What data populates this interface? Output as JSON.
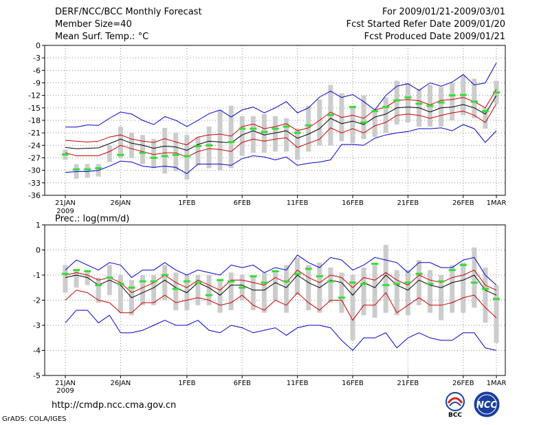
{
  "header": {
    "title": "DERF/NCC/BCC Monthly Forecast",
    "member_size": "Member Size=40",
    "variable": "Mean Surf. Temp.: °C",
    "period": "For 2009/01/21-2009/03/01",
    "started": "Fcst Started Refer Date 2009/01/20",
    "produced": "Fcst Produced Date 2009/01/21"
  },
  "footer": {
    "url": "http://cmdp.ncc.cma.gov.cn",
    "grads": "GrADS: COLA/IGES",
    "logo_bcc": "BCC",
    "logo_ncc": "NCC"
  },
  "colors": {
    "ensemble_mean": "#000000",
    "inner_spread": "#cc0000",
    "outer_spread": "#0000cc",
    "member_box": "#cccccc",
    "observation": "#33dd33",
    "grid": "#888888"
  },
  "chart_data": [
    {
      "type": "line",
      "panel": "temperature",
      "title": "Mean Surf. Temp.: °C",
      "xlabel": "",
      "ylabel": "",
      "ylim": [
        -36,
        0
      ],
      "yticks": [
        0,
        -3,
        -6,
        -9,
        -12,
        -15,
        -18,
        -21,
        -24,
        -27,
        -30,
        -33,
        -36
      ],
      "xticks": [
        {
          "day": 0,
          "label": "21JAN",
          "sublabel": "2009"
        },
        {
          "day": 5,
          "label": "26JAN"
        },
        {
          "day": 11,
          "label": "1FEB"
        },
        {
          "day": 16,
          "label": "6FEB"
        },
        {
          "day": 21,
          "label": "11FEB"
        },
        {
          "day": 26,
          "label": "16FEB"
        },
        {
          "day": 31,
          "label": "21FEB"
        },
        {
          "day": 36,
          "label": "26FEB"
        },
        {
          "day": 39,
          "label": "1MAR"
        }
      ],
      "days": [
        0,
        1,
        2,
        3,
        4,
        5,
        6,
        7,
        8,
        9,
        10,
        11,
        12,
        13,
        14,
        15,
        16,
        17,
        18,
        19,
        20,
        21,
        22,
        23,
        24,
        25,
        26,
        27,
        28,
        29,
        30,
        31,
        32,
        33,
        34,
        35,
        36,
        37,
        38,
        39
      ],
      "series": [
        {
          "name": "upper_outer",
          "values": [
            -19.6,
            -19.6,
            -19.1,
            -19.2,
            -17.5,
            -16.0,
            -16.5,
            -18.0,
            -19.0,
            -17.1,
            -18.0,
            -19.5,
            -18.0,
            -16.4,
            -15.5,
            -17.2,
            -15.5,
            -14.8,
            -16.2,
            -15.0,
            -13.5,
            -16.2,
            -15.0,
            -12.4,
            -11.0,
            -12.5,
            -11.8,
            -13.5,
            -15.5,
            -12.0,
            -9.8,
            -9.2,
            -10.8,
            -9.0,
            -9.8,
            -8.8,
            -7.0,
            -9.5,
            -9.0,
            -4.2
          ]
        },
        {
          "name": "upper_inner",
          "values": [
            -22.8,
            -23.0,
            -23.2,
            -23.0,
            -22.0,
            -21.5,
            -22.5,
            -23.0,
            -23.3,
            -22.4,
            -23.2,
            -23.9,
            -22.0,
            -21.5,
            -21.3,
            -21.8,
            -19.5,
            -18.9,
            -20.0,
            -19.5,
            -18.8,
            -20.5,
            -19.8,
            -18.0,
            -16.0,
            -17.3,
            -16.8,
            -17.5,
            -15.5,
            -14.8,
            -13.2,
            -13.0,
            -13.3,
            -14.3,
            -13.2,
            -13.0,
            -12.5,
            -13.5,
            -15.0,
            -10.5
          ]
        },
        {
          "name": "mean",
          "values": [
            -24.5,
            -24.8,
            -24.7,
            -24.6,
            -23.6,
            -22.5,
            -23.5,
            -24.0,
            -24.7,
            -24.2,
            -24.4,
            -25.2,
            -23.8,
            -23.0,
            -23.2,
            -23.4,
            -21.5,
            -20.5,
            -21.5,
            -21.0,
            -20.5,
            -22.3,
            -21.3,
            -20.0,
            -17.5,
            -18.8,
            -18.2,
            -19.0,
            -17.2,
            -16.5,
            -15.0,
            -14.8,
            -15.0,
            -16.0,
            -15.0,
            -14.8,
            -14.2,
            -15.0,
            -16.5,
            -12.0
          ]
        },
        {
          "name": "lower_inner",
          "values": [
            -25.8,
            -26.5,
            -26.5,
            -26.5,
            -25.5,
            -24.0,
            -24.8,
            -25.5,
            -26.2,
            -25.8,
            -25.8,
            -26.8,
            -25.5,
            -24.8,
            -25.0,
            -25.5,
            -23.3,
            -22.5,
            -23.0,
            -22.5,
            -22.2,
            -24.5,
            -23.5,
            -22.5,
            -19.8,
            -21.0,
            -20.0,
            -21.0,
            -19.3,
            -18.5,
            -16.8,
            -16.5,
            -16.8,
            -17.5,
            -16.8,
            -16.2,
            -15.8,
            -16.8,
            -18.5,
            -14.0
          ]
        },
        {
          "name": "lower_outer",
          "values": [
            -30.5,
            -30.3,
            -30.3,
            -30.0,
            -29.0,
            -27.8,
            -28.0,
            -29.0,
            -29.3,
            -29.0,
            -29.3,
            -30.8,
            -28.5,
            -28.5,
            -28.5,
            -28.8,
            -27.2,
            -26.5,
            -26.8,
            -27.5,
            -26.8,
            -28.8,
            -28.3,
            -28.0,
            -27.5,
            -23.8,
            -23.8,
            -24.0,
            -22.3,
            -21.5,
            -21.0,
            -20.7,
            -20.0,
            -20.0,
            -19.8,
            -20.5,
            -19.0,
            -20.0,
            -23.3,
            -20.5
          ]
        }
      ],
      "box_low": [
        -27.5,
        -32.0,
        -31.8,
        -31.5,
        -28.0,
        -27.0,
        -27.0,
        -28.5,
        -29.5,
        -30.8,
        -30.2,
        -32.2,
        -28.8,
        -29.5,
        -30.0,
        -29.5,
        -26.5,
        -25.8,
        -25.8,
        -25.5,
        -25.5,
        -27.5,
        -25.5,
        -24.0,
        -24.0,
        -23.0,
        -23.5,
        -22.5,
        -22.0,
        -21.0,
        -19.0,
        -18.5,
        -19.5,
        -19.5,
        -19.5,
        -18.0,
        -16.8,
        -17.5,
        -20.0,
        -14.0
      ],
      "box_high": [
        -25.0,
        -28.5,
        -28.5,
        -28.5,
        -24.0,
        -19.5,
        -21.0,
        -21.5,
        -22.5,
        -19.8,
        -21.0,
        -21.5,
        -22.0,
        -19.5,
        -15.5,
        -14.5,
        -17.0,
        -17.0,
        -16.5,
        -17.0,
        -17.5,
        -20.0,
        -14.5,
        -13.0,
        -9.5,
        -11.5,
        -14.5,
        -12.0,
        -15.5,
        -12.5,
        -8.5,
        -9.0,
        -10.5,
        -9.5,
        -10.0,
        -9.0,
        -7.2,
        -8.0,
        -15.0,
        -8.5
      ],
      "observed": [
        -26.2,
        -29.8,
        -29.8,
        -29.5,
        null,
        -26.3,
        null,
        -25.8,
        -27.0,
        -26.6,
        -26.3,
        -26.6,
        -24.2,
        -24.0,
        null,
        -23.2,
        -20.0,
        -20.0,
        -20.8,
        -20.0,
        -19.5,
        -21.0,
        -19.2,
        null,
        -16.7,
        null,
        -14.8,
        -18.5,
        -15.8,
        -14.8,
        -13.2,
        -12.5,
        -14.0,
        -14.5,
        -13.7,
        -12.0,
        -11.9,
        -13.5,
        -15.8,
        -11.3
      ]
    },
    {
      "type": "line",
      "panel": "precipitation",
      "title": "Prec.: log(mm/d)",
      "xlabel": "",
      "ylabel": "",
      "ylim": [
        -5,
        1
      ],
      "yticks": [
        1,
        0,
        -1,
        -2,
        -3,
        -4,
        -5
      ],
      "xticks": [
        {
          "day": 0,
          "label": "21JAN",
          "sublabel": "2009"
        },
        {
          "day": 5,
          "label": "26JAN"
        },
        {
          "day": 11,
          "label": "1FEB"
        },
        {
          "day": 16,
          "label": "6FEB"
        },
        {
          "day": 21,
          "label": "11FEB"
        },
        {
          "day": 26,
          "label": "16FEB"
        },
        {
          "day": 31,
          "label": "21FEB"
        },
        {
          "day": 36,
          "label": "26FEB"
        },
        {
          "day": 39,
          "label": "1MAR"
        }
      ],
      "days": [
        0,
        1,
        2,
        3,
        4,
        5,
        6,
        7,
        8,
        9,
        10,
        11,
        12,
        13,
        14,
        15,
        16,
        17,
        18,
        19,
        20,
        21,
        22,
        23,
        24,
        25,
        26,
        27,
        28,
        29,
        30,
        31,
        32,
        33,
        34,
        35,
        36,
        37,
        38,
        39
      ],
      "series": [
        {
          "name": "upper_outer",
          "values": [
            -0.8,
            -0.4,
            -0.6,
            -0.8,
            -0.5,
            -0.6,
            -1.1,
            -0.8,
            -0.8,
            -0.5,
            -0.8,
            -1.0,
            -0.8,
            -0.9,
            -1.0,
            -0.6,
            -0.7,
            -0.6,
            -0.9,
            -0.7,
            -0.8,
            -0.2,
            -0.5,
            -0.7,
            -0.3,
            -0.4,
            -0.8,
            -0.6,
            -0.3,
            -0.4,
            -0.5,
            -0.9,
            -0.5,
            -0.5,
            -0.7,
            -0.7,
            -0.4,
            -0.3,
            -1.0,
            -1.4
          ]
        },
        {
          "name": "upper_inner",
          "values": [
            -1.0,
            -0.9,
            -1.0,
            -1.2,
            -1.1,
            -1.3,
            -1.7,
            -1.5,
            -1.3,
            -1.0,
            -1.3,
            -1.5,
            -1.2,
            -1.4,
            -1.6,
            -1.2,
            -1.2,
            -1.3,
            -1.4,
            -1.1,
            -1.3,
            -0.8,
            -1.1,
            -1.3,
            -1.0,
            -1.1,
            -1.5,
            -1.1,
            -1.2,
            -0.9,
            -1.2,
            -1.4,
            -1.0,
            -1.2,
            -1.3,
            -1.1,
            -1.0,
            -0.8,
            -1.4,
            -1.6
          ]
        },
        {
          "name": "mean",
          "values": [
            -1.1,
            -1.0,
            -1.1,
            -1.4,
            -1.2,
            -1.4,
            -1.9,
            -1.7,
            -1.5,
            -1.2,
            -1.5,
            -1.7,
            -1.3,
            -1.5,
            -1.8,
            -1.4,
            -1.4,
            -1.6,
            -1.6,
            -1.3,
            -1.5,
            -1.0,
            -1.3,
            -1.5,
            -1.2,
            -1.3,
            -1.8,
            -1.3,
            -1.5,
            -1.0,
            -1.4,
            -1.6,
            -1.2,
            -1.4,
            -1.5,
            -1.3,
            -1.2,
            -1.0,
            -1.6,
            -1.8
          ]
        },
        {
          "name": "lower_inner",
          "values": [
            -2.0,
            -1.6,
            -1.7,
            -2.0,
            -2.1,
            -2.5,
            -2.5,
            -2.1,
            -2.1,
            -1.8,
            -2.1,
            -2.0,
            -1.9,
            -2.0,
            -2.2,
            -2.1,
            -1.8,
            -2.2,
            -2.4,
            -2.0,
            -2.2,
            -1.7,
            -2.1,
            -2.4,
            -2.0,
            -2.0,
            -2.8,
            -2.2,
            -2.2,
            -1.7,
            -2.5,
            -2.2,
            -1.9,
            -2.2,
            -2.2,
            -2.1,
            -1.9,
            -1.8,
            -2.3,
            -2.7
          ]
        },
        {
          "name": "lower_outer",
          "values": [
            -2.9,
            -2.4,
            -2.4,
            -2.9,
            -2.6,
            -3.3,
            -3.3,
            -3.2,
            -3.0,
            -2.8,
            -3.0,
            -3.0,
            -2.8,
            -3.2,
            -3.3,
            -3.0,
            -3.1,
            -3.3,
            -3.2,
            -3.1,
            -3.4,
            -3.1,
            -3.0,
            -3.0,
            -3.1,
            -3.6,
            -4.0,
            -3.5,
            -3.5,
            -3.3,
            -3.9,
            -3.5,
            -3.3,
            -3.5,
            -3.6,
            -3.6,
            -3.3,
            -3.3,
            -3.9,
            -4.0
          ]
        },
        {
          "name": "lower_outer_tail",
          "values": []
        }
      ],
      "box_low": [
        -1.7,
        -1.5,
        -1.4,
        -2.1,
        -1.8,
        -2.5,
        -2.6,
        -2.2,
        -2.2,
        -2.0,
        -2.4,
        -2.4,
        -2.2,
        -2.2,
        -2.5,
        -2.4,
        -2.0,
        -2.4,
        -2.5,
        -2.0,
        -2.5,
        -1.8,
        -2.4,
        -2.5,
        -2.1,
        -2.5,
        -3.6,
        -2.6,
        -2.7,
        -2.5,
        -2.6,
        -2.6,
        -2.2,
        -2.5,
        -2.8,
        -2.5,
        -2.5,
        -2.3,
        -2.9,
        -3.7
      ],
      "box_high": [
        -0.6,
        -0.8,
        -0.9,
        -1.1,
        -0.6,
        -1.0,
        -1.2,
        -1.0,
        -1.0,
        -0.6,
        -0.9,
        -1.0,
        -1.0,
        -1.0,
        -1.2,
        -0.9,
        -1.0,
        -1.0,
        -0.9,
        -0.9,
        -0.6,
        -0.3,
        -0.6,
        -0.5,
        -0.7,
        -0.9,
        -1.0,
        -0.7,
        -0.6,
        0.2,
        -0.8,
        -0.8,
        -0.4,
        -0.8,
        -1.0,
        -0.6,
        -0.5,
        0.1,
        -0.7,
        -1.4
      ],
      "observed": [
        -0.95,
        -0.8,
        -0.85,
        -1.4,
        -1.1,
        -1.35,
        -1.5,
        -1.25,
        -1.25,
        -1.0,
        -1.55,
        -1.25,
        -1.3,
        -1.8,
        -1.2,
        -1.25,
        -1.5,
        -1.05,
        -1.3,
        -0.85,
        -1.25,
        -0.95,
        -0.75,
        -1.05,
        -1.25,
        -1.9,
        -1.3,
        -1.35,
        -0.55,
        -1.4,
        -1.35,
        -1.3,
        -0.95,
        -1.35,
        -1.25,
        -0.8,
        -0.6,
        -1.3,
        -1.55,
        -1.95
      ]
    }
  ]
}
